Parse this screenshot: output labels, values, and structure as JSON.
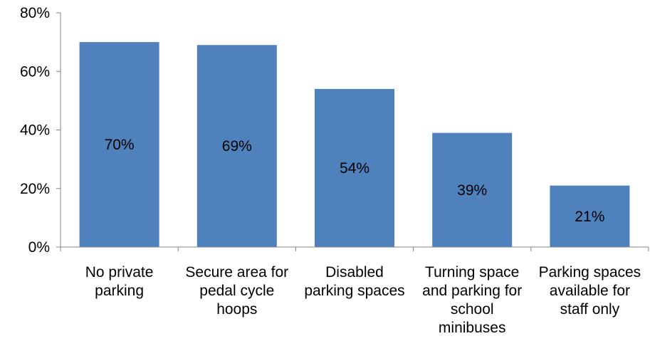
{
  "chart_data": {
    "type": "bar",
    "categories": [
      [
        "No private",
        "parking"
      ],
      [
        "Secure area for",
        "pedal cycle",
        "hoops"
      ],
      [
        "Disabled",
        "parking spaces"
      ],
      [
        "Turning space",
        "and parking for",
        "school",
        "minibuses"
      ],
      [
        "Parking spaces",
        "available for",
        "staff only"
      ]
    ],
    "values": [
      70,
      69,
      54,
      39,
      21
    ],
    "data_labels": [
      "70%",
      "69%",
      "54%",
      "39%",
      "21%"
    ],
    "y_ticks": [
      "0%",
      "20%",
      "40%",
      "60%",
      "80%"
    ],
    "y_tick_values": [
      0,
      20,
      40,
      60,
      80
    ],
    "ylim": [
      0,
      80
    ],
    "title": "",
    "xlabel": "",
    "ylabel": "",
    "grid": false,
    "legend": "none",
    "colors": {
      "bar": "#4f81bd",
      "axis": "#868686",
      "text": "#000000"
    }
  }
}
